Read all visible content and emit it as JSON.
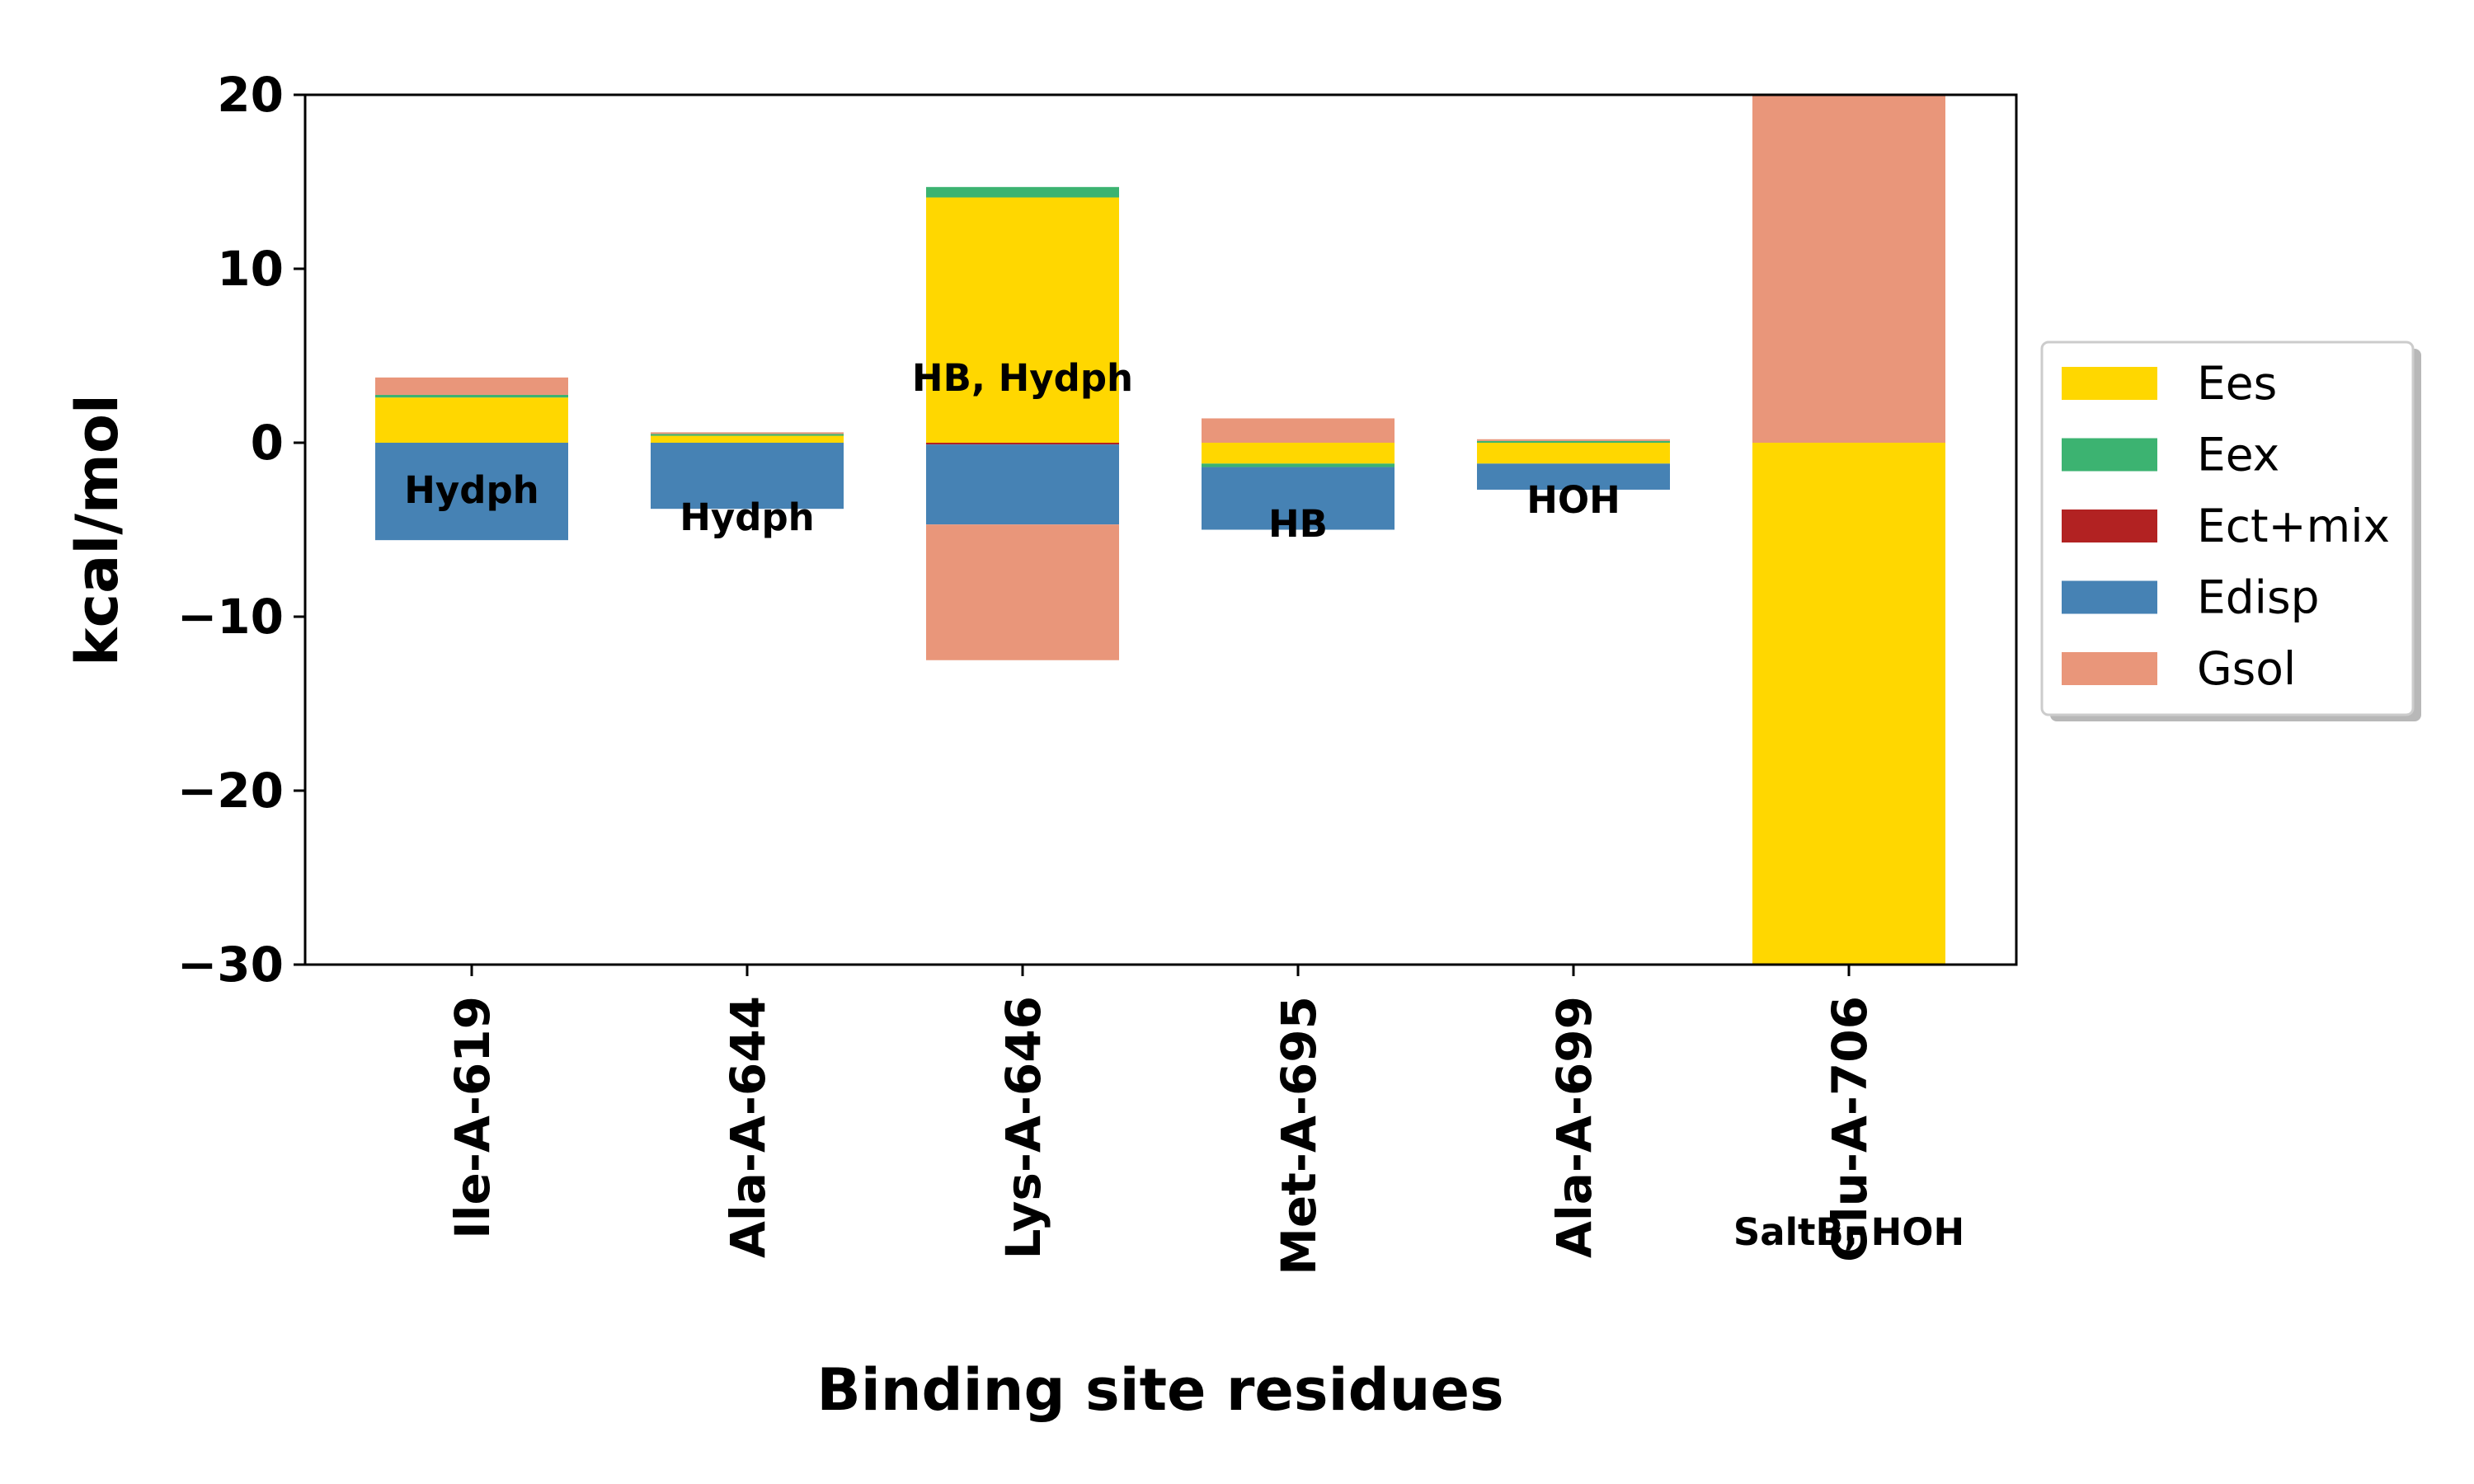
{
  "chart_data": {
    "type": "bar",
    "stacked": true,
    "xlabel": "Binding site residues",
    "ylabel": "kcal/mol",
    "ylim": [
      -30,
      20
    ],
    "yticks": [
      20,
      10,
      0,
      -10,
      -20,
      -30
    ],
    "ytick_labels": [
      "20",
      "10",
      "0",
      "−10",
      "−20",
      "−30"
    ],
    "categories": [
      "Ile-A-619",
      "Ala-A-644",
      "Lys-A-646",
      "Met-A-695",
      "Ala-A-699",
      "Glu-A-706"
    ],
    "annotations": [
      "Hydph",
      "Hydph",
      "HB, Hydph",
      "HB",
      "HOH",
      "SaltB, HOH"
    ],
    "series": [
      {
        "name": "Ees",
        "color": "#FFD700",
        "values": [
          2.6,
          0.4,
          14.1,
          -1.2,
          -1.2,
          -31
        ]
      },
      {
        "name": "Eex",
        "color": "#3CB371",
        "values": [
          0.15,
          0.1,
          0.6,
          -0.2,
          0.1,
          0
        ]
      },
      {
        "name": "Ect+mix",
        "color": "#B22222",
        "values": [
          0,
          0,
          -0.1,
          0,
          0,
          0
        ]
      },
      {
        "name": "Edisp",
        "color": "#4682B4",
        "values": [
          -5.6,
          -3.8,
          -4.6,
          -3.6,
          -1.5,
          0
        ]
      },
      {
        "name": "Gsol",
        "color": "#E9967A",
        "values": [
          1.0,
          0.1,
          -7.8,
          1.4,
          0.1,
          22
        ]
      }
    ],
    "legend_position": "center-right",
    "grid": false
  }
}
